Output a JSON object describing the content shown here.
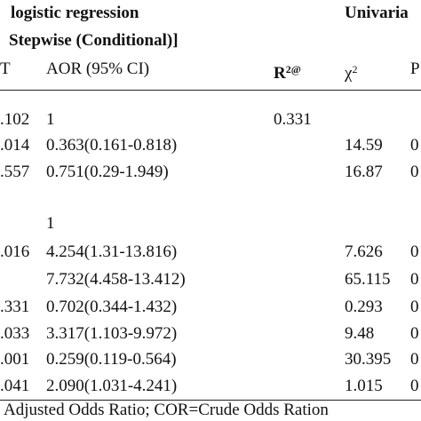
{
  "header": {
    "title_left": "logistic regression",
    "title_right": "Univaria",
    "subtitle": "Stepwise (Conditional)]"
  },
  "columns": [
    {
      "text": "T"
    },
    {
      "text": "AOR (95% CI)"
    },
    {
      "text": "R",
      "sup": "2@"
    },
    {
      "text": "χ",
      "sup": "2"
    },
    {
      "text": "P"
    }
  ],
  "table": {
    "rows": [
      [
        ".102",
        "1",
        "0.331",
        null,
        null
      ],
      [
        ".014",
        "0.363(0.161-0.818)",
        null,
        "14.59",
        "0"
      ],
      [
        ".557",
        "0.751(0.29-1.949)",
        null,
        "16.87",
        "0"
      ],
      [
        null,
        "1",
        null,
        null,
        null
      ],
      [
        ".016",
        "4.254(1.31-13.816)",
        null,
        "7.626",
        "0"
      ],
      [
        null,
        "7.732(4.458-13.412)",
        null,
        "65.115",
        "0"
      ],
      [
        ".331",
        "0.702(0.344-1.432)",
        null,
        "0.293",
        "0"
      ],
      [
        ".033",
        "3.317(1.103-9.972)",
        null,
        "9.48",
        "0"
      ],
      [
        ".001",
        "0.259(0.119-0.564)",
        null,
        "30.395",
        "0"
      ],
      [
        ".041",
        "2.090(1.031-4.241)",
        null,
        "1.015",
        "0"
      ]
    ]
  },
  "footnote": "Adjusted Odds Ratio; COR=Crude Odds Ration"
}
